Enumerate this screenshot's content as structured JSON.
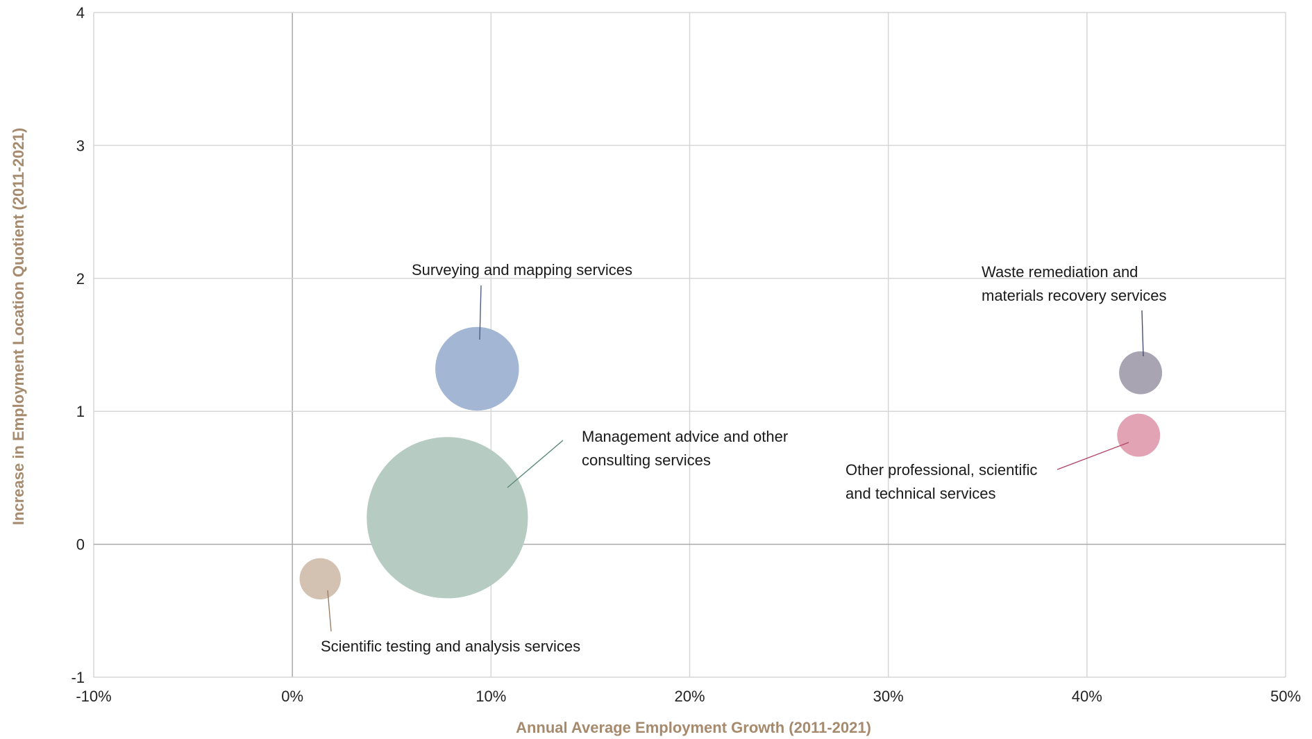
{
  "chart_data": {
    "type": "bubble",
    "xlabel": "Annual Average Employment Growth (2011-2021)",
    "ylabel": "Increase in Employment Location Quotient (2011-2021)",
    "xlim": [
      -10,
      50
    ],
    "ylim": [
      -1,
      4
    ],
    "x_ticks": [
      -10,
      0,
      10,
      20,
      30,
      40,
      50
    ],
    "x_tick_labels": [
      "-10%",
      "0%",
      "10%",
      "20%",
      "30%",
      "40%",
      "50%"
    ],
    "y_ticks": [
      -1,
      0,
      1,
      2,
      3,
      4
    ],
    "y_tick_labels": [
      "-1",
      "0",
      "1",
      "2",
      "3",
      "4"
    ],
    "grid": true,
    "legend": "none",
    "points": [
      {
        "id": "surveying",
        "label_lines": [
          "Surveying and mapping services"
        ],
        "x": 9.3,
        "y": 1.32,
        "size": 14,
        "color": "#a3b6d3",
        "leader_color": "#4e5f80"
      },
      {
        "id": "management",
        "label_lines": [
          "Management advice and other",
          "consulting services"
        ],
        "x": 7.8,
        "y": 0.2,
        "size": 52,
        "color": "#b6cbc1",
        "leader_color": "#5d8a78"
      },
      {
        "id": "scientific",
        "label_lines": [
          "Scientific testing and analysis services"
        ],
        "x": 1.4,
        "y": -0.26,
        "size": 3.4,
        "color": "#d3c1b2",
        "leader_color": "#9b7e67"
      },
      {
        "id": "waste",
        "label_lines": [
          "Waste remediation and",
          "materials recovery services"
        ],
        "x": 42.7,
        "y": 1.29,
        "size": 3.7,
        "color": "#a8a4b2",
        "leader_color": "#4a4e6e"
      },
      {
        "id": "other",
        "label_lines": [
          "Other professional, scientific",
          "and technical services"
        ],
        "x": 42.6,
        "y": 0.82,
        "size": 3.7,
        "color": "#e2a4b5",
        "leader_color": "#b04a6a"
      }
    ]
  }
}
